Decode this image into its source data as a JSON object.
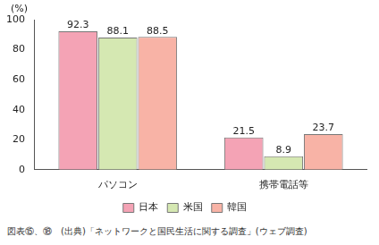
{
  "chart_data": {
    "type": "bar",
    "y_label": "(%)",
    "source": "図表⑮、⑱　(出典)「ネットワークと国民生活に関する調査」(ウェブ調査)",
    "categories": [
      "パソコン",
      "携帯電話等"
    ],
    "series": [
      {
        "name": "日本",
        "color": "#f4a3b5",
        "values": [
          92.3,
          21.5
        ]
      },
      {
        "name": "米国",
        "color": "#d5e8b2",
        "values": [
          88.1,
          8.9
        ]
      },
      {
        "name": "韓国",
        "color": "#f8b3a6",
        "values": [
          88.5,
          23.7
        ]
      }
    ],
    "ylim": [
      0,
      100
    ],
    "yticks": [
      0,
      20,
      40,
      60,
      80,
      100
    ],
    "grid": false,
    "legend": "bottom",
    "data_labels": true
  }
}
